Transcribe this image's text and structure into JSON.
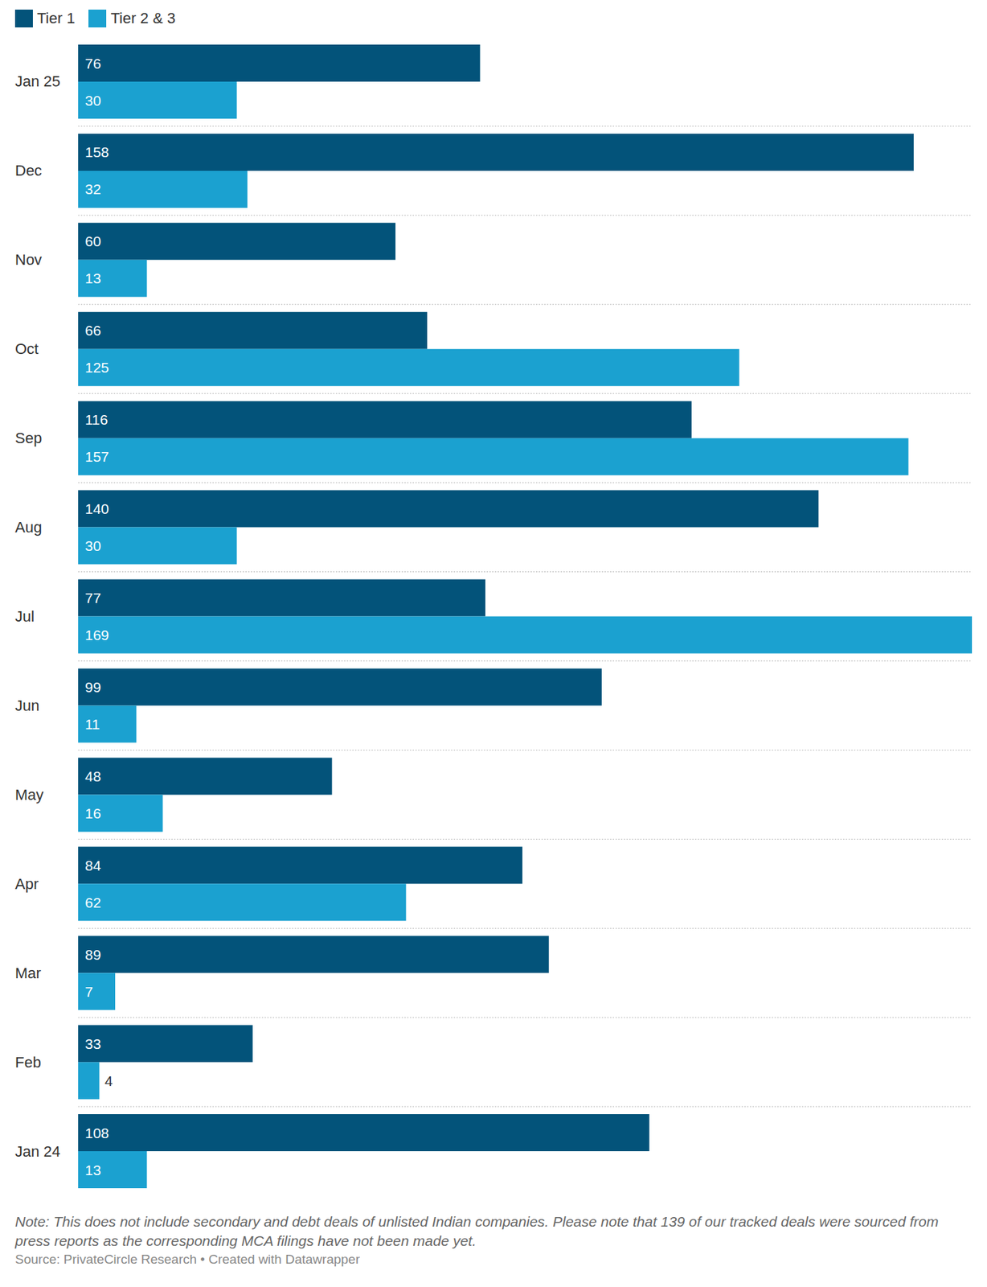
{
  "chart_data": {
    "type": "bar",
    "orientation": "horizontal",
    "categories": [
      "Jan 25",
      "Dec",
      "Nov",
      "Oct",
      "Sep",
      "Aug",
      "Jul",
      "Jun",
      "May",
      "Apr",
      "Mar",
      "Feb",
      "Jan 24"
    ],
    "series": [
      {
        "name": "Tier 1",
        "color": "#03537a",
        "values": [
          76,
          158,
          60,
          66,
          116,
          140,
          77,
          99,
          48,
          84,
          89,
          33,
          108
        ]
      },
      {
        "name": "Tier 2 & 3",
        "color": "#1ba1d0",
        "values": [
          30,
          32,
          13,
          125,
          157,
          30,
          169,
          11,
          16,
          62,
          7,
          4,
          13
        ]
      }
    ],
    "xlim": [
      0,
      169
    ],
    "data_labels": true,
    "tick_labels": "y",
    "grid": true,
    "legend": "top left",
    "note": "Note: This does not include secondary and debt deals of unlisted Indian companies. Please note that 139 of our tracked deals were sourced from press reports as the corresponding MCA filings have not been made yet.",
    "source": "Source: PrivateCircle Research • Created with Datawrapper"
  }
}
